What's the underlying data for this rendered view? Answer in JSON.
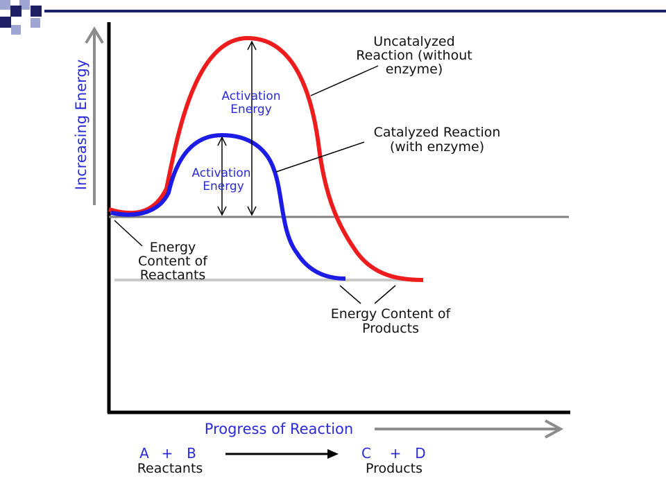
{
  "colors": {
    "uncatalyzed": "#ee1c1c",
    "catalyzed": "#1c1ce6",
    "axis_label": "#2a2ad8",
    "axis_arrow": "#8c8c8c",
    "deco_dark": "#1f1f66",
    "deco_light": "#9fa6d4"
  },
  "labels": {
    "y_axis": "Increasing Energy",
    "x_axis": "Progress of Reaction",
    "uncatalyzed": [
      "Uncatalyzed",
      "Reaction (without",
      "enzyme)"
    ],
    "catalyzed": [
      "Catalyzed Reaction",
      "(with enzyme)"
    ],
    "activation_uncat": [
      "Activation",
      "Energy"
    ],
    "activation_cat": [
      "Activation",
      "Energy"
    ],
    "reactants_energy": [
      "Energy",
      "Content of",
      "Reactants"
    ],
    "products_energy": [
      "Energy Content of",
      "Products"
    ]
  },
  "equation": {
    "a": "A",
    "plus1": "+",
    "b": "B",
    "reactants": "Reactants",
    "c": "C",
    "plus2": "+",
    "d": "D",
    "products": "Products"
  }
}
